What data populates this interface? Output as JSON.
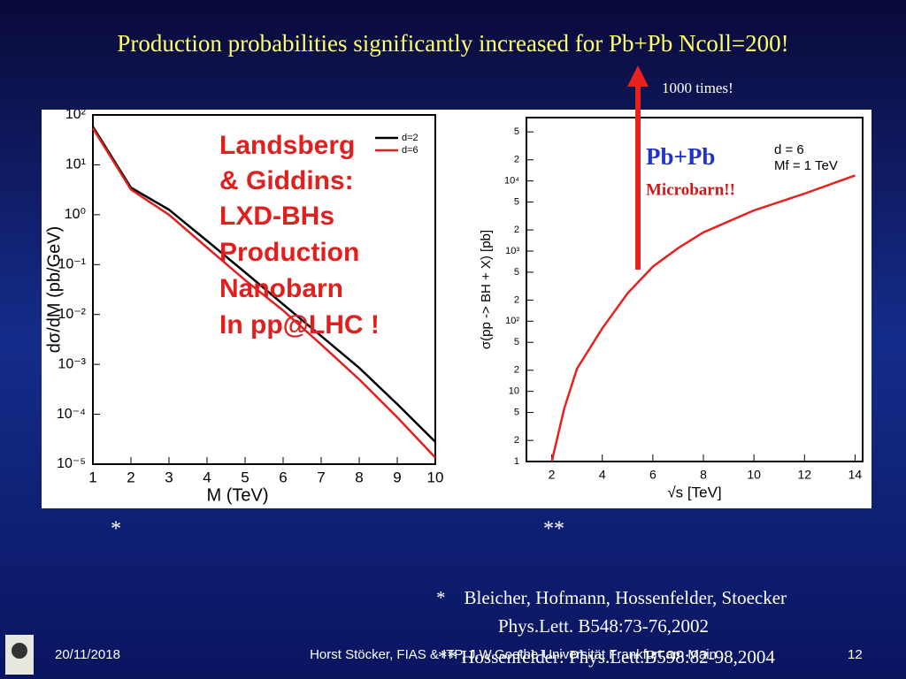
{
  "title": "Production probabilities significantly increased for Pb+Pb Ncoll=200!",
  "arrow_note": "1000 times!",
  "left_note": [
    "Landsberg",
    "& Giddins:",
    "LXD-BHs",
    "Production",
    "Nanobarn",
    "In pp@LHC !"
  ],
  "pbpb": {
    "label": "Pb+Pb",
    "unit": "Microbarn!!"
  },
  "markers": [
    "*",
    "**"
  ],
  "references": [
    "*    Bleicher, Hofmann, Hossenfelder, Stoecker",
    "Phys.Lett. B548:73-76,2002",
    "** Hossenfelder: Phys.Lett.B598:82-98,2004"
  ],
  "footer": {
    "date": "20/11/2018",
    "author": "Horst Stöcker, FIAS & ITP, J.W.Goethe-Universität Frankfurt am Main",
    "page": "12"
  },
  "chart_data": [
    {
      "type": "line",
      "xlabel": "M (TeV)",
      "ylabel": "dσ/dM (pb/GeV)",
      "x": [
        1,
        2,
        3,
        4,
        5,
        6,
        7,
        8,
        9,
        10
      ],
      "series": [
        {
          "name": "d=2",
          "color": "#000000",
          "values": [
            58,
            3.5,
            1.26,
            0.3,
            0.07,
            0.016,
            0.0037,
            0.00085,
            0.00016,
            2.8e-05
          ]
        },
        {
          "name": "d=6",
          "color": "#e0201e",
          "values": [
            54,
            3.2,
            1.0,
            0.22,
            0.049,
            0.012,
            0.0025,
            0.0005,
            8.7e-05,
            1.35e-05
          ]
        }
      ],
      "xlim": [
        1,
        10
      ],
      "ylim": [
        1e-05,
        100
      ],
      "y_scale": "log",
      "xticks": [
        1,
        2,
        3,
        4,
        5,
        6,
        7,
        8,
        9,
        10
      ],
      "yticks": [
        {
          "value": 1e-05,
          "label": "10⁻⁵"
        },
        {
          "value": 0.0001,
          "label": "10⁻⁴"
        },
        {
          "value": 0.001,
          "label": "10⁻³"
        },
        {
          "value": 0.01,
          "label": "10⁻²"
        },
        {
          "value": 0.1,
          "label": "10⁻¹"
        },
        {
          "value": 1,
          "label": "10⁰"
        },
        {
          "value": 10,
          "label": "10¹"
        },
        {
          "value": 100,
          "label": "10²"
        }
      ],
      "legend": "upper right"
    },
    {
      "type": "line",
      "xlabel": "√s [TeV]",
      "ylabel": "σ(pp -> BH + X) [pb]",
      "annotations": [
        "d = 6",
        "Mf = 1 TeV"
      ],
      "x": [
        2,
        2.5,
        3,
        4,
        5,
        6,
        7,
        8,
        10,
        12,
        14
      ],
      "values": [
        1,
        5.8,
        21,
        79,
        250,
        600,
        1100,
        1850,
        3800,
        6600,
        12000
      ],
      "color": "#e8201e",
      "xlim": [
        1,
        14.3
      ],
      "ylim": [
        1,
        80000
      ],
      "y_scale": "log",
      "xticks": [
        2,
        4,
        6,
        8,
        10,
        12,
        14
      ],
      "yticks": [
        1,
        2,
        5,
        10,
        {
          "value": 20,
          "label": "2"
        },
        {
          "value": 50,
          "label": "5"
        },
        {
          "value": 100,
          "label": "10²"
        },
        {
          "value": 200,
          "label": "2"
        },
        {
          "value": 500,
          "label": "5"
        },
        {
          "value": 1000,
          "label": "10³"
        },
        {
          "value": 2000,
          "label": "2"
        },
        {
          "value": 5000,
          "label": "5"
        },
        {
          "value": 10000,
          "label": "10⁴"
        },
        {
          "value": 20000,
          "label": "2"
        },
        {
          "value": 50000,
          "label": "5"
        }
      ]
    }
  ]
}
